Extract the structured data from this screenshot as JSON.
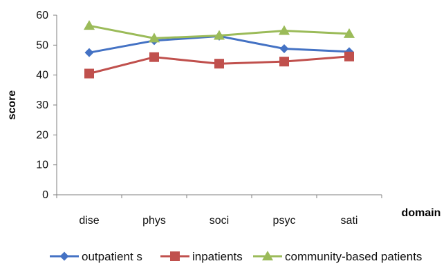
{
  "chart_data": {
    "type": "line",
    "title": "",
    "xlabel": "domain",
    "ylabel": "score",
    "categories": [
      "dise",
      "phys",
      "soci",
      "psyc",
      "sati"
    ],
    "ylim": [
      0,
      60
    ],
    "yticks": [
      0,
      10,
      20,
      30,
      40,
      50,
      60
    ],
    "grid": false,
    "legend_position": "bottom",
    "series": [
      {
        "name": "outpatient s",
        "values": [
          47.5,
          51.5,
          53.0,
          48.8,
          47.8
        ],
        "color": "#4472C4",
        "marker": "diamond"
      },
      {
        "name": "inpatients",
        "values": [
          40.5,
          46.0,
          43.8,
          44.5,
          46.2
        ],
        "color": "#C0504D",
        "marker": "square"
      },
      {
        "name": "community-based patients",
        "values": [
          56.5,
          52.3,
          53.2,
          54.8,
          53.8
        ],
        "color": "#9BBB59",
        "marker": "triangle"
      }
    ]
  }
}
